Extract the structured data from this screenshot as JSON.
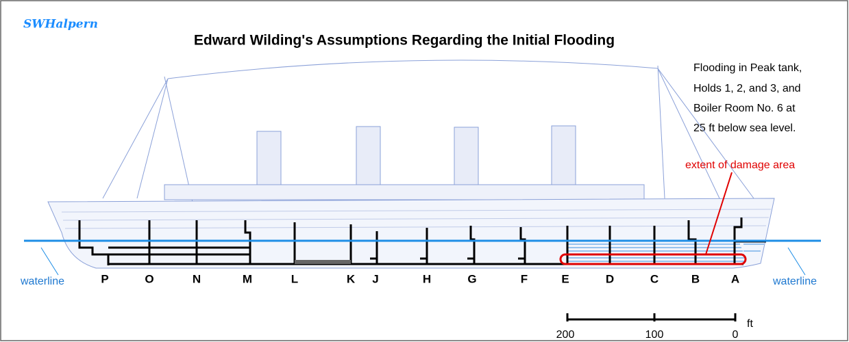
{
  "signature": "SWHalpern",
  "title": "Edward Wilding's Assumptions Regarding the Initial Flooding",
  "note": [
    "Flooding in Peak tank,",
    "Holds 1, 2, and 3, and",
    "Boiler Room No. 6 at",
    "25 ft below sea level."
  ],
  "damage_label": "extent of damage area",
  "waterline_labels": [
    "waterline",
    "waterline"
  ],
  "bulkheads": [
    "P",
    "O",
    "N",
    "M",
    "L",
    "K",
    "J",
    "H",
    "G",
    "F",
    "E",
    "D",
    "C",
    "B",
    "A"
  ],
  "scale": {
    "labels": [
      200,
      100,
      0
    ],
    "unit": "ft"
  }
}
